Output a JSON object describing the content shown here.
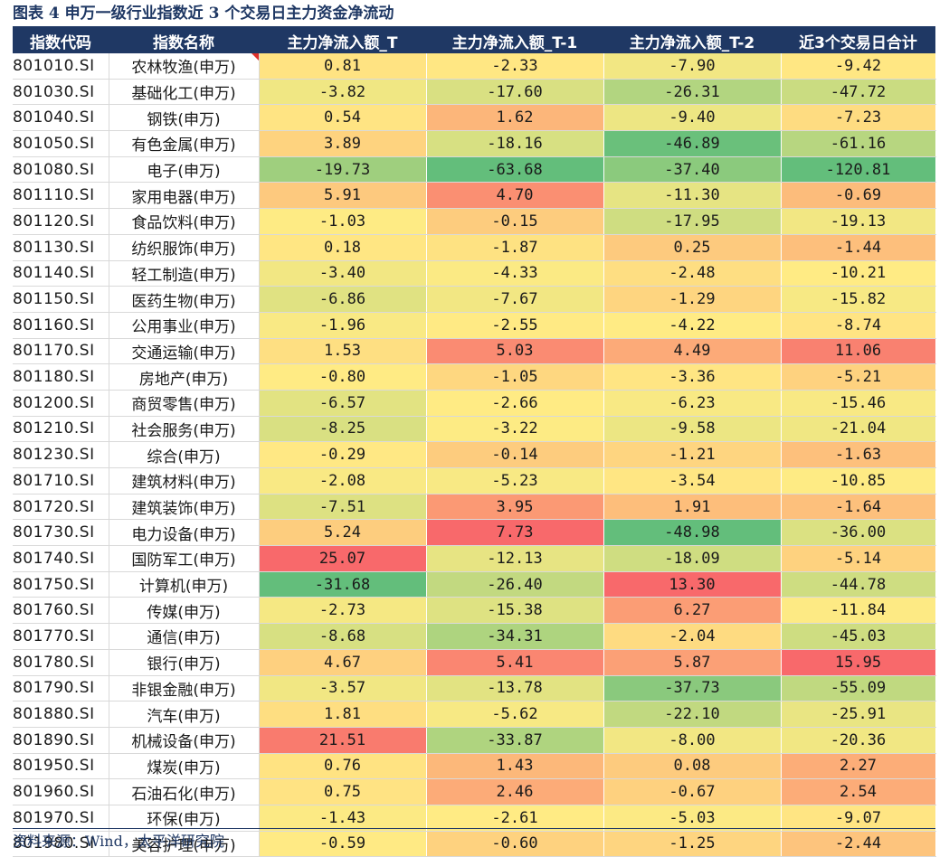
{
  "title": "图表 4  申万一级行业指数近 3 个交易日主力资金净流动",
  "source": "资料来源：Wind，太平洋研究院",
  "headers": [
    "指数代码",
    "指数名称",
    "主力净流入额_T",
    "主力净流入额_T-1",
    "主力净流入额_T-2",
    "近3个交易日合计"
  ],
  "rows": [
    {
      "code": "801010.SI",
      "name": "农林牧渔(申万)",
      "t": "0.81",
      "t1": "-2.33",
      "t2": "-7.90",
      "sum": "-9.42"
    },
    {
      "code": "801030.SI",
      "name": "基础化工(申万)",
      "t": "-3.82",
      "t1": "-17.60",
      "t2": "-26.31",
      "sum": "-47.72"
    },
    {
      "code": "801040.SI",
      "name": "钢铁(申万)",
      "t": "0.54",
      "t1": "1.62",
      "t2": "-9.40",
      "sum": "-7.23"
    },
    {
      "code": "801050.SI",
      "name": "有色金属(申万)",
      "t": "3.89",
      "t1": "-18.16",
      "t2": "-46.89",
      "sum": "-61.16"
    },
    {
      "code": "801080.SI",
      "name": "电子(申万)",
      "t": "-19.73",
      "t1": "-63.68",
      "t2": "-37.40",
      "sum": "-120.81"
    },
    {
      "code": "801110.SI",
      "name": "家用电器(申万)",
      "t": "5.91",
      "t1": "4.70",
      "t2": "-11.30",
      "sum": "-0.69"
    },
    {
      "code": "801120.SI",
      "name": "食品饮料(申万)",
      "t": "-1.03",
      "t1": "-0.15",
      "t2": "-17.95",
      "sum": "-19.13"
    },
    {
      "code": "801130.SI",
      "name": "纺织服饰(申万)",
      "t": "0.18",
      "t1": "-1.87",
      "t2": "0.25",
      "sum": "-1.44"
    },
    {
      "code": "801140.SI",
      "name": "轻工制造(申万)",
      "t": "-3.40",
      "t1": "-4.33",
      "t2": "-2.48",
      "sum": "-10.21"
    },
    {
      "code": "801150.SI",
      "name": "医药生物(申万)",
      "t": "-6.86",
      "t1": "-7.67",
      "t2": "-1.29",
      "sum": "-15.82"
    },
    {
      "code": "801160.SI",
      "name": "公用事业(申万)",
      "t": "-1.96",
      "t1": "-2.55",
      "t2": "-4.22",
      "sum": "-8.74"
    },
    {
      "code": "801170.SI",
      "name": "交通运输(申万)",
      "t": "1.53",
      "t1": "5.03",
      "t2": "4.49",
      "sum": "11.06"
    },
    {
      "code": "801180.SI",
      "name": "房地产(申万)",
      "t": "-0.80",
      "t1": "-1.05",
      "t2": "-3.36",
      "sum": "-5.21"
    },
    {
      "code": "801200.SI",
      "name": "商贸零售(申万)",
      "t": "-6.57",
      "t1": "-2.66",
      "t2": "-6.23",
      "sum": "-15.46"
    },
    {
      "code": "801210.SI",
      "name": "社会服务(申万)",
      "t": "-8.25",
      "t1": "-3.22",
      "t2": "-9.58",
      "sum": "-21.04"
    },
    {
      "code": "801230.SI",
      "name": "综合(申万)",
      "t": "-0.29",
      "t1": "-0.14",
      "t2": "-1.21",
      "sum": "-1.63"
    },
    {
      "code": "801710.SI",
      "name": "建筑材料(申万)",
      "t": "-2.08",
      "t1": "-5.23",
      "t2": "-3.54",
      "sum": "-10.85"
    },
    {
      "code": "801720.SI",
      "name": "建筑装饰(申万)",
      "t": "-7.51",
      "t1": "3.95",
      "t2": "1.91",
      "sum": "-1.64"
    },
    {
      "code": "801730.SI",
      "name": "电力设备(申万)",
      "t": "5.24",
      "t1": "7.73",
      "t2": "-48.98",
      "sum": "-36.00"
    },
    {
      "code": "801740.SI",
      "name": "国防军工(申万)",
      "t": "25.07",
      "t1": "-12.13",
      "t2": "-18.09",
      "sum": "-5.14"
    },
    {
      "code": "801750.SI",
      "name": "计算机(申万)",
      "t": "-31.68",
      "t1": "-26.40",
      "t2": "13.30",
      "sum": "-44.78"
    },
    {
      "code": "801760.SI",
      "name": "传媒(申万)",
      "t": "-2.73",
      "t1": "-15.38",
      "t2": "6.27",
      "sum": "-11.84"
    },
    {
      "code": "801770.SI",
      "name": "通信(申万)",
      "t": "-8.68",
      "t1": "-34.31",
      "t2": "-2.04",
      "sum": "-45.03"
    },
    {
      "code": "801780.SI",
      "name": "银行(申万)",
      "t": "4.67",
      "t1": "5.41",
      "t2": "5.87",
      "sum": "15.95"
    },
    {
      "code": "801790.SI",
      "name": "非银金融(申万)",
      "t": "-3.57",
      "t1": "-13.78",
      "t2": "-37.73",
      "sum": "-55.09"
    },
    {
      "code": "801880.SI",
      "name": "汽车(申万)",
      "t": "1.81",
      "t1": "-5.62",
      "t2": "-22.10",
      "sum": "-25.91"
    },
    {
      "code": "801890.SI",
      "name": "机械设备(申万)",
      "t": "21.51",
      "t1": "-33.87",
      "t2": "-8.00",
      "sum": "-20.36"
    },
    {
      "code": "801950.SI",
      "name": "煤炭(申万)",
      "t": "0.76",
      "t1": "1.43",
      "t2": "0.08",
      "sum": "2.27"
    },
    {
      "code": "801960.SI",
      "name": "石油石化(申万)",
      "t": "0.75",
      "t1": "2.46",
      "t2": "-0.67",
      "sum": "2.54"
    },
    {
      "code": "801970.SI",
      "name": "环保(申万)",
      "t": "-1.43",
      "t1": "-2.61",
      "t2": "-5.03",
      "sum": "-9.07"
    },
    {
      "code": "801980.SI",
      "name": "美容护理(申万)",
      "t": "-0.59",
      "t1": "-0.60",
      "t2": "-1.25",
      "sum": "-2.44"
    }
  ],
  "colors": {
    "header_bg": "#1f3864",
    "header_text": "#ffffff",
    "scale_high": "#f8696b",
    "scale_mid": "#ffeb84",
    "scale_low": "#63be7b",
    "title": "#1f3864"
  }
}
